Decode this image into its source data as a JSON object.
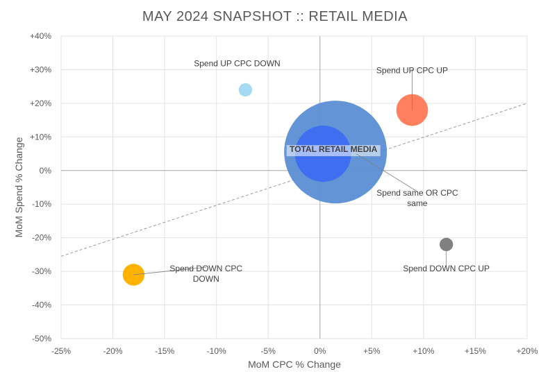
{
  "chart_data": {
    "type": "scatter",
    "title": "MAY 2024 SNAPSHOT :: RETAIL MEDIA",
    "xlabel": "MoM CPC % Change",
    "ylabel": "MoM Spend % Change",
    "xlim": [
      -25,
      20
    ],
    "ylim": [
      -50,
      40
    ],
    "x_ticks": [
      -25,
      -20,
      -15,
      -10,
      -5,
      0,
      5,
      10,
      15,
      20
    ],
    "x_tick_labels": [
      "-25%",
      "-20%",
      "-15%",
      "-10%",
      "-5%",
      "0%",
      "+5%",
      "+10%",
      "+15%",
      "+20%"
    ],
    "y_ticks": [
      40,
      30,
      20,
      10,
      0,
      -10,
      -20,
      -30,
      -40,
      -50
    ],
    "y_tick_labels": [
      "+40%",
      "+30%",
      "+20%",
      "+10%",
      "0%",
      "-10%",
      "-20%",
      "-30%",
      "-40%",
      "-50%"
    ],
    "grid": true,
    "trendline": {
      "style": "dashed",
      "from": [
        -25,
        -25.5
      ],
      "to": [
        20,
        20
      ]
    },
    "bubbles": [
      {
        "x": 1.5,
        "y": 5.5,
        "size": 1.0,
        "color": "#5b8fd4",
        "opacity": 0.95
      },
      {
        "x": 0.3,
        "y": 5,
        "size": 0.3,
        "color": "#3f6ff0",
        "opacity": 1.0
      },
      {
        "x": 8.9,
        "y": 18,
        "size": 0.095,
        "color": "#ff7f5e",
        "opacity": 1.0
      },
      {
        "x": -7.2,
        "y": 24,
        "size": 0.017,
        "color": "#a6daf2",
        "opacity": 1.0
      },
      {
        "x": 12.2,
        "y": -22,
        "size": 0.017,
        "color": "#7f8080",
        "opacity": 1.0
      },
      {
        "x": -18,
        "y": -31,
        "size": 0.045,
        "color": "#ffb300",
        "opacity": 1.0
      }
    ],
    "annotations": [
      {
        "text": [
          "TOTAL RETAIL MEDIA"
        ],
        "bold": true,
        "anchor": [
          1.3,
          5.5
        ],
        "text_at": [
          1.3,
          5.5
        ],
        "leader": false
      },
      {
        "text": [
          "Spend same OR CPC",
          "same"
        ],
        "bold": false,
        "anchor": [
          3.5,
          5
        ],
        "text_at": [
          9.4,
          -7.5
        ],
        "leader": true
      },
      {
        "text": [
          "Spend UP CPC UP"
        ],
        "bold": false,
        "anchor": [
          8.9,
          18
        ],
        "text_at": [
          8.9,
          29
        ],
        "leader": true
      },
      {
        "text": [
          "Spend UP CPC DOWN"
        ],
        "bold": false,
        "anchor": [
          -7.2,
          24
        ],
        "text_at": [
          -8,
          31
        ],
        "leader": false
      },
      {
        "text": [
          "Spend DOWN CPC UP"
        ],
        "bold": false,
        "anchor": [
          12.2,
          -22
        ],
        "text_at": [
          12.2,
          -30
        ],
        "leader": true
      },
      {
        "text": [
          "Spend DOWN CPC",
          "DOWN"
        ],
        "bold": false,
        "anchor": [
          -18,
          -31
        ],
        "text_at": [
          -11,
          -30
        ],
        "leader": true
      }
    ]
  }
}
